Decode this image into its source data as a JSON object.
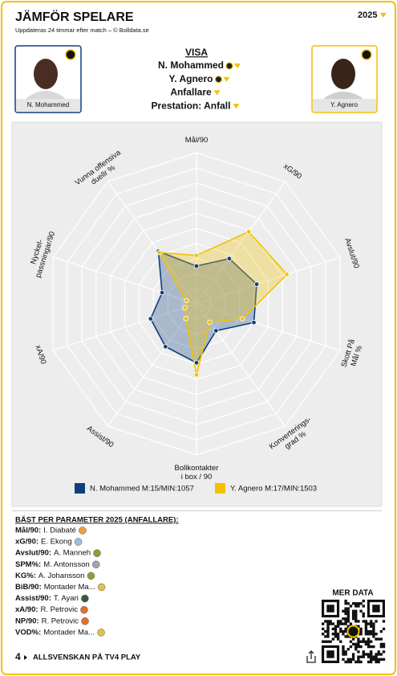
{
  "header": {
    "title": "JÄMFÖR SPELARE",
    "subtitle": "Uppdateras 24 timmar efter match – © Bolldata.se",
    "year": "2025"
  },
  "players": [
    {
      "name": "N. Mohammed"
    },
    {
      "name": "Y. Agnero"
    }
  ],
  "filters": {
    "heading": "VISA",
    "items": [
      "N. Mohammed",
      "Y. Agnero",
      "Anfallare",
      "Prestation: Anfall"
    ]
  },
  "chart_data": {
    "type": "radar",
    "axes": [
      "Mål/90",
      "xG/90",
      "Avslut/90",
      "Skott På\nMål %",
      "Konverterings-\ngrad %",
      "Bollkontakter\ni box / 90",
      "Assist/90",
      "xA/90",
      "Nyckel-\npassningar/90",
      "Vunna offensiva\nduellr %"
    ],
    "rlim": [
      0,
      100
    ],
    "rticks": [
      10,
      20,
      30,
      40,
      50,
      60,
      70,
      80,
      90,
      100
    ],
    "series": [
      {
        "name": "N. Mohammed M:15/MIN:1057",
        "color": "#0f3f7d",
        "values": [
          25,
          37,
          42,
          40,
          22,
          39,
          35,
          32,
          24,
          43
        ]
      },
      {
        "name": "Y. Agnero M:17/MIN:1503",
        "color": "#f2c200",
        "values": [
          32,
          59,
          63,
          32,
          15,
          47,
          12,
          8,
          7,
          42
        ]
      }
    ]
  },
  "best": {
    "heading": "BÄST PER PARAMETER 2025 (ANFALLARE):",
    "rows": [
      {
        "param": "Mål/90:",
        "player": "I. Diabaté"
      },
      {
        "param": "xG/90:",
        "player": "E. Ekong"
      },
      {
        "param": "Avslut/90:",
        "player": "A. Manneh"
      },
      {
        "param": "SPM%:",
        "player": "M. Antonsson"
      },
      {
        "param": "KG%:",
        "player": "A. Johansson"
      },
      {
        "param": "BiB/90:",
        "player": "Montader Ma..."
      },
      {
        "param": "Assist/90:",
        "player": "T. Ayari"
      },
      {
        "param": "xA/90:",
        "player": "R. Petrovic"
      },
      {
        "param": "NP/90:",
        "player": "R. Petrovic"
      },
      {
        "param": "VOD%:",
        "player": "Montader Ma..."
      }
    ]
  },
  "more_data": "MER DATA",
  "footer": {
    "number": "4",
    "text": "ALLSVENSKAN PÅ TV4 PLAY"
  }
}
